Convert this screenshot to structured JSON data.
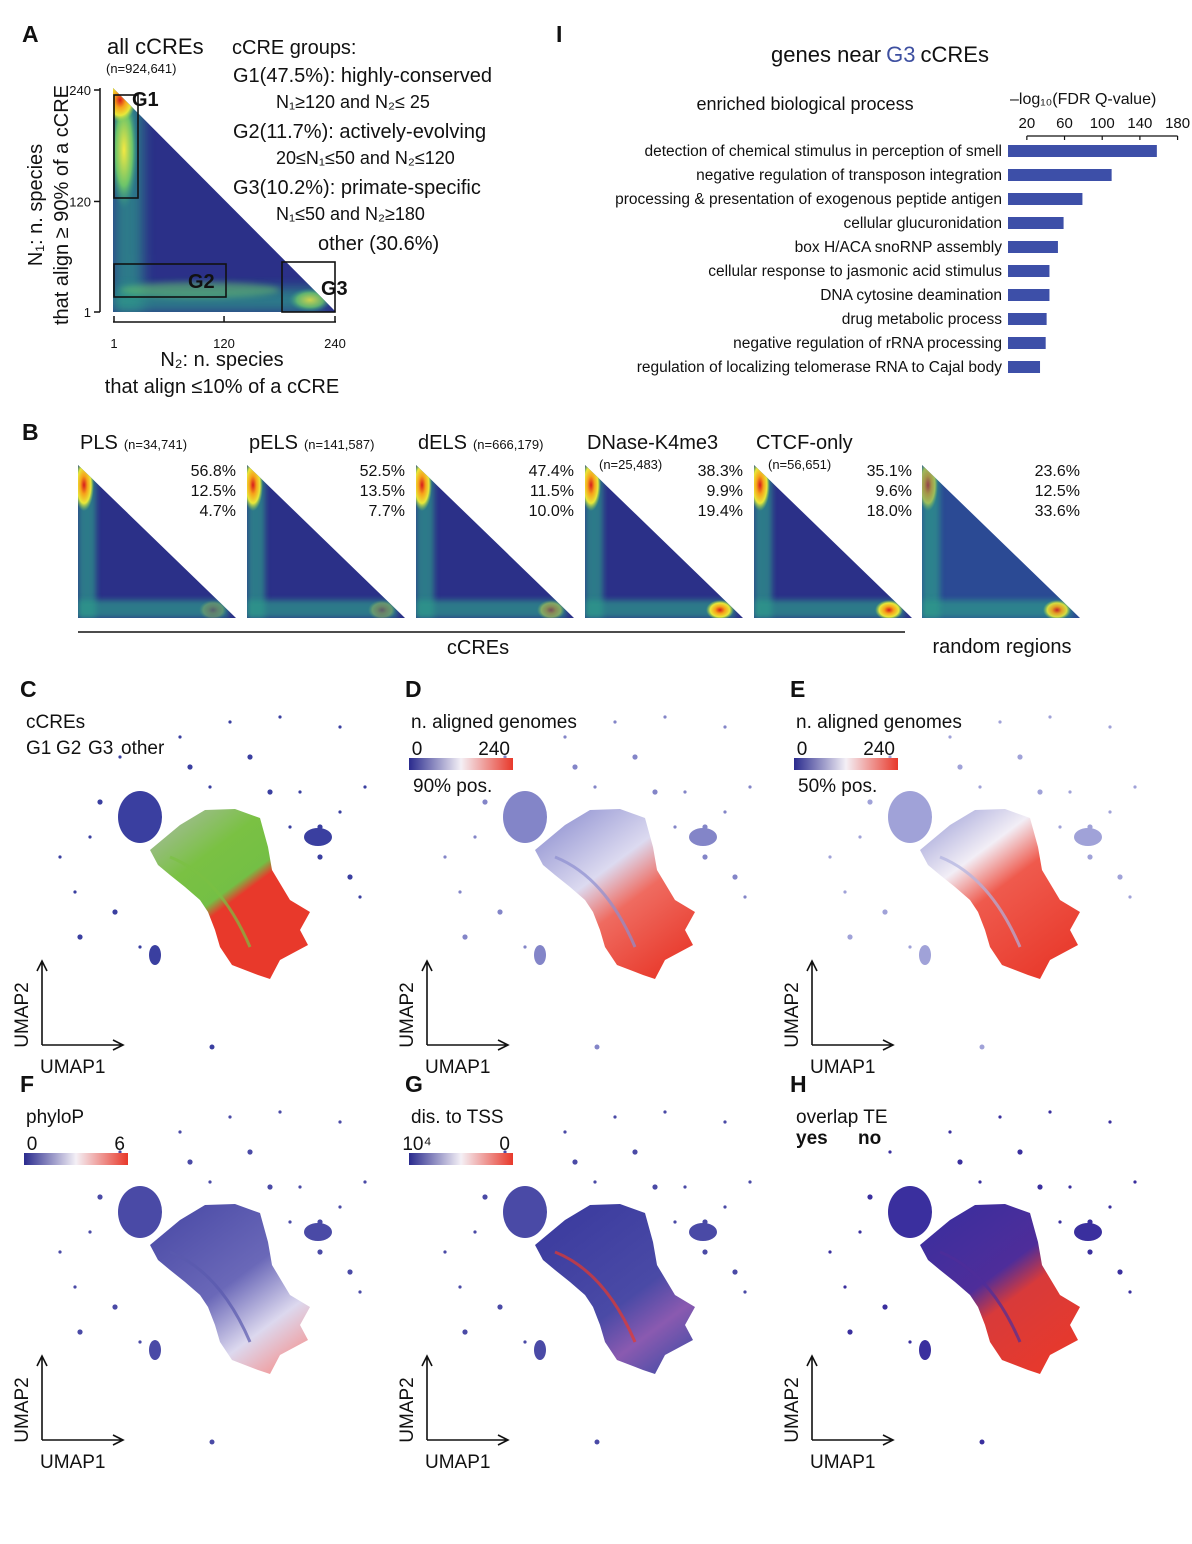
{
  "panel_a": {
    "label": "A",
    "title": "all cCREs",
    "n": "(n=924,641)",
    "ticks": [
      1,
      120,
      240
    ],
    "ylabel": [
      "N₁: n. species",
      "that align ≥ 90% of a cCRE"
    ],
    "xlabel": [
      "N₂: n. species",
      "that align ≤10% of a cCRE"
    ],
    "legend_title": "cCRE groups:",
    "groups": [
      {
        "name": "G1",
        "label": "G1(47.5%): highly-conserved",
        "rule": "N₁≥120 and N₂≤ 25",
        "color": "#e4462e"
      },
      {
        "name": "G2",
        "label": "G2(11.7%): actively-evolving",
        "rule": "20≤N₁≤50 and N₂≤120",
        "color": "#7cbf45"
      },
      {
        "name": "G3",
        "label": "G3(10.2%): primate-specific",
        "rule": "N₁≤50 and N₂≥180",
        "color": "#3d4fa0"
      }
    ],
    "other": "other (30.6%)"
  },
  "panel_b": {
    "label": "B",
    "items": [
      {
        "name": "PLS",
        "n": "(n=34,741)",
        "pct": [
          "56.8%",
          "12.5%",
          "4.7%"
        ]
      },
      {
        "name": "pELS",
        "n": "(n=141,587)",
        "pct": [
          "52.5%",
          "13.5%",
          "7.7%"
        ]
      },
      {
        "name": "dELS",
        "n": "(n=666,179)",
        "pct": [
          "47.4%",
          "11.5%",
          "10.0%"
        ]
      },
      {
        "name": "DNase-K4me3",
        "n": "(n=25,483)",
        "pct": [
          "38.3%",
          "9.9%",
          "19.4%"
        ]
      },
      {
        "name": "CTCF-only",
        "n": "(n=56,651)",
        "pct": [
          "35.1%",
          "9.6%",
          "18.0%"
        ]
      },
      {
        "pct": [
          "23.6%",
          "12.5%",
          "33.6%"
        ]
      }
    ],
    "ccres": "cCREs",
    "random": "random regions"
  },
  "umap": {
    "axes": {
      "x": "UMAP1",
      "y": "UMAP2"
    },
    "panels": [
      {
        "label": "C",
        "title": "cCREs",
        "legend": [
          "G1",
          "G2",
          "G3",
          "other"
        ]
      },
      {
        "label": "D",
        "title": "n. aligned genomes",
        "scale": [
          "0",
          "240"
        ],
        "note": "90% pos."
      },
      {
        "label": "E",
        "title": "n. aligned genomes",
        "scale": [
          "0",
          "240"
        ],
        "note": "50% pos."
      },
      {
        "label": "F",
        "title": "phyloP",
        "scale": [
          "0",
          "6"
        ]
      },
      {
        "label": "G",
        "title": "dis. to TSS",
        "scale": [
          "10⁴",
          "0"
        ]
      },
      {
        "label": "H",
        "title": "overlap TE",
        "legend": [
          "yes",
          "no"
        ]
      }
    ]
  },
  "chart_data": {
    "type": "bar",
    "label": "I",
    "title_parts": [
      "genes near",
      "G3",
      "cCREs"
    ],
    "subtitle": "enriched biological process",
    "xlabel": "–log₁₀(FDR Q-value)",
    "categories": [
      "detection of chemical stimulus in perception of smell",
      "negative regulation of transposon integration",
      "processing & presentation of exogenous peptide antigen",
      "cellular glucuronidation",
      "box H/ACA snoRNP assembly",
      "cellular response to jasmonic acid stimulus",
      "DNA cytosine deamination",
      "drug metabolic process",
      "negative regulation of rRNA processing",
      "regulation of localizing telomerase RNA to Cajal body"
    ],
    "values": [
      158,
      110,
      79,
      59,
      53,
      44,
      44,
      41,
      40,
      34
    ],
    "color": "#3d4fa8",
    "xlim": [
      0,
      190
    ],
    "xticks": [
      20,
      60,
      100,
      140,
      180
    ]
  }
}
